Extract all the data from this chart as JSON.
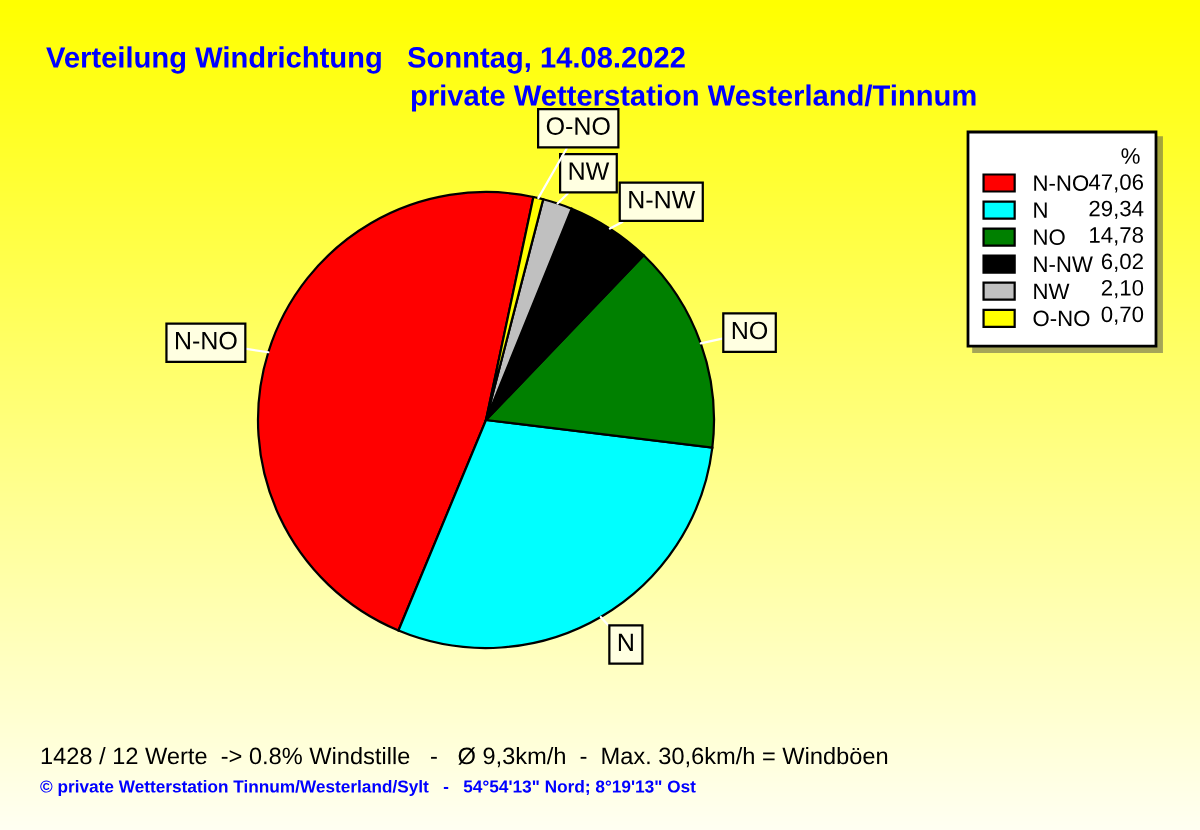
{
  "chart_data": {
    "type": "pie",
    "title": "Verteilung Windrichtung   Sonntag, 14.08.2022",
    "subtitle": "private Wetterstation Westerland/Tinnum",
    "categories": [
      "N-NO",
      "N",
      "NO",
      "N-NW",
      "NW",
      "O-NO"
    ],
    "values": [
      47.06,
      29.34,
      14.78,
      6.02,
      2.1,
      0.7
    ],
    "colors": [
      "#ff0000",
      "#00ffff",
      "#008000",
      "#000000",
      "#c0c0c0",
      "#ffff00"
    ],
    "value_labels": [
      "47,06",
      "29,34",
      "14,78",
      "6,02",
      "2,10",
      "0,70"
    ],
    "legend_title": "%",
    "legend": "top right",
    "annotations": [
      "1428 / 12 Werte  -> 0.8% Windstille   -   Ø 9,3km/h  -  Max. 30,6km/h = Windböen",
      "© private Wetterstation Tinnum/Westerland/Sylt   -   54°54'13\" Nord; 8°19'13\" Ost"
    ]
  }
}
